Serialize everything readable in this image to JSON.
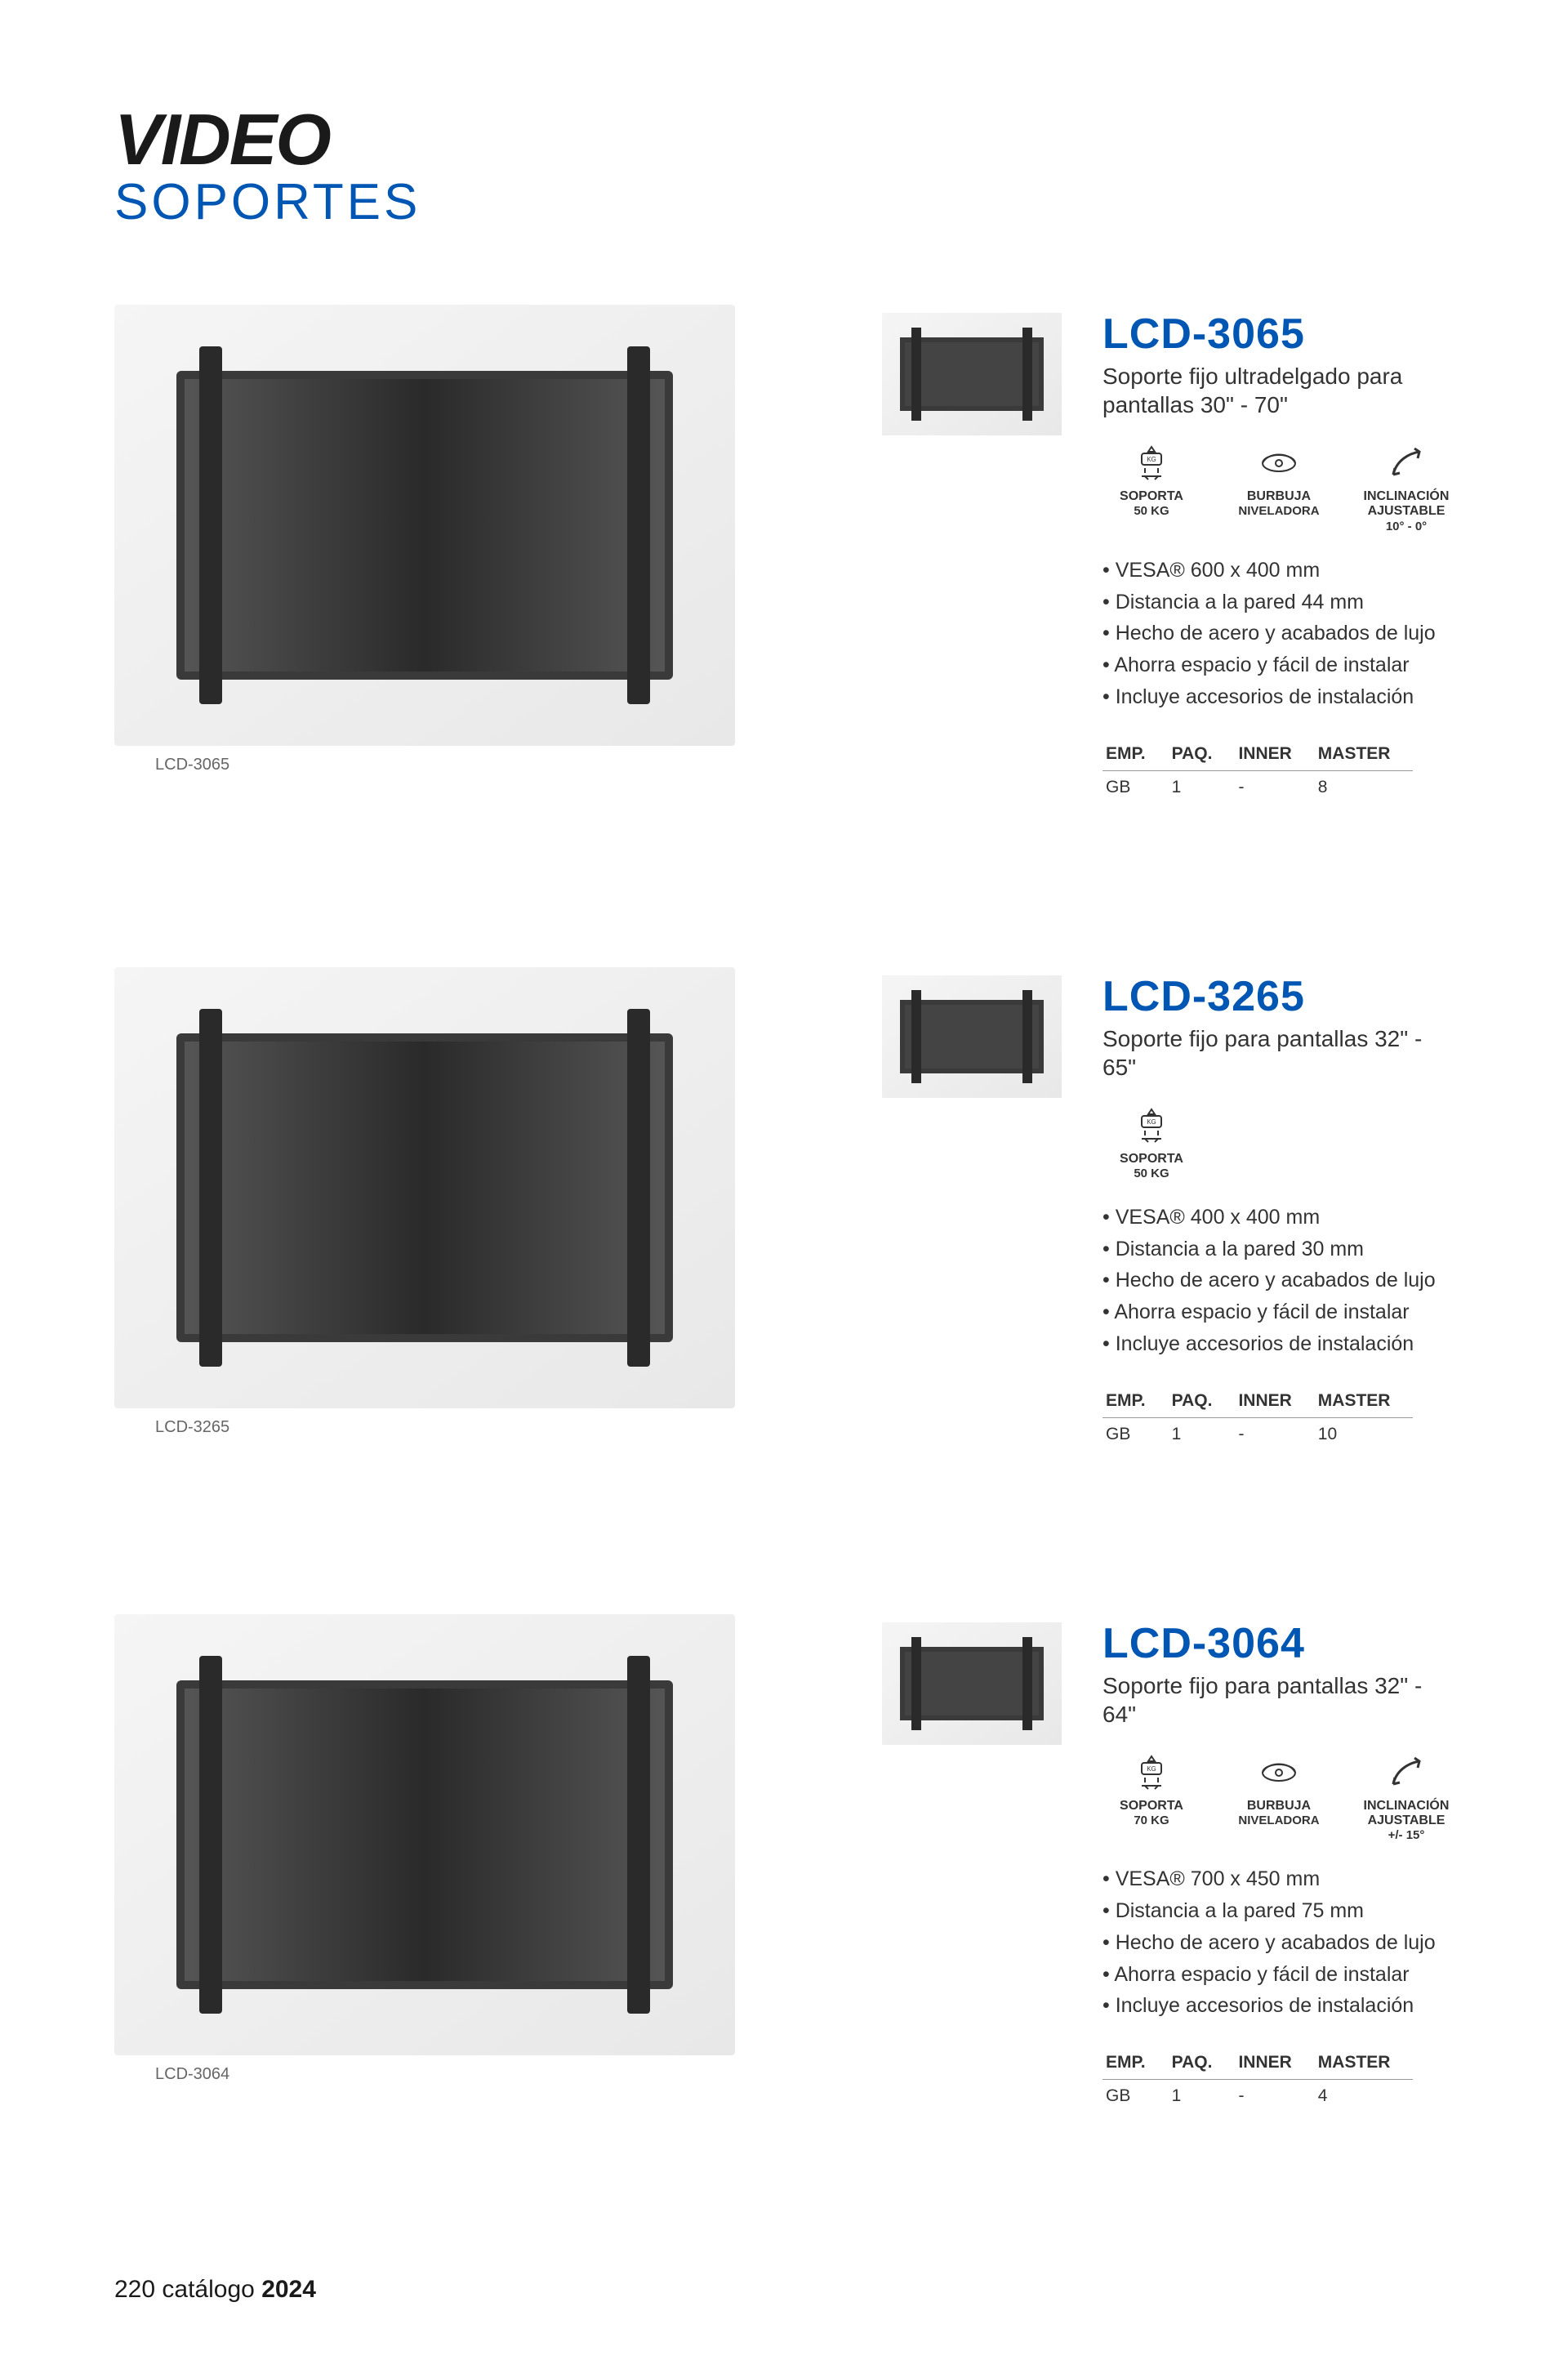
{
  "page": {
    "title_main": "VIDEO",
    "title_sub": "SOPORTES",
    "footer_page": "220",
    "footer_text": "catálogo",
    "footer_year": "2024",
    "colors": {
      "brand_blue": "#0056b3",
      "text": "#333333",
      "black": "#1a1a1a"
    }
  },
  "table_headers": [
    "EMP.",
    "PAQ.",
    "INNER",
    "MASTER"
  ],
  "products": [
    {
      "sku": "LCD-3065",
      "caption": "LCD-3065",
      "subtitle": "Soporte fijo ultradelgado para pantallas 30\" - 70\"",
      "icons": [
        {
          "label": "SOPORTA",
          "sub": "50 KG",
          "glyph": "weight"
        },
        {
          "label": "BURBUJA",
          "sub": "NIVELADORA",
          "glyph": "bubble"
        },
        {
          "label": "INCLINACIÓN AJUSTABLE",
          "sub": "10° - 0°",
          "glyph": "tilt"
        }
      ],
      "bullets": [
        "VESA® 600 x 400 mm",
        "Distancia a la pared 44 mm",
        "Hecho de acero y acabados de lujo",
        "Ahorra espacio y fácil de instalar",
        "Incluye accesorios de instalación"
      ],
      "pkg": [
        "GB",
        "1",
        "-",
        "8"
      ]
    },
    {
      "sku": "LCD-3265",
      "caption": "LCD-3265",
      "subtitle": "Soporte fijo para pantallas 32\" - 65\"",
      "icons": [
        {
          "label": "SOPORTA",
          "sub": "50 KG",
          "glyph": "weight"
        }
      ],
      "bullets": [
        "VESA® 400 x 400 mm",
        "Distancia a la pared 30 mm",
        "Hecho de acero y acabados de lujo",
        "Ahorra espacio y fácil de instalar",
        "Incluye accesorios de instalación"
      ],
      "pkg": [
        "GB",
        "1",
        "-",
        "10"
      ]
    },
    {
      "sku": "LCD-3064",
      "caption": "LCD-3064",
      "subtitle": "Soporte fijo para pantallas 32\" - 64\"",
      "icons": [
        {
          "label": "SOPORTA",
          "sub": "70 KG",
          "glyph": "weight"
        },
        {
          "label": "BURBUJA",
          "sub": "NIVELADORA",
          "glyph": "bubble"
        },
        {
          "label": "INCLINACIÓN AJUSTABLE",
          "sub": "+/- 15°",
          "glyph": "tilt"
        }
      ],
      "bullets": [
        "VESA® 700 x 450 mm",
        "Distancia a la pared 75 mm",
        "Hecho de acero y acabados de lujo",
        "Ahorra espacio y fácil de instalar",
        "Incluye accesorios de instalación"
      ],
      "pkg": [
        "GB",
        "1",
        "-",
        "4"
      ]
    }
  ]
}
